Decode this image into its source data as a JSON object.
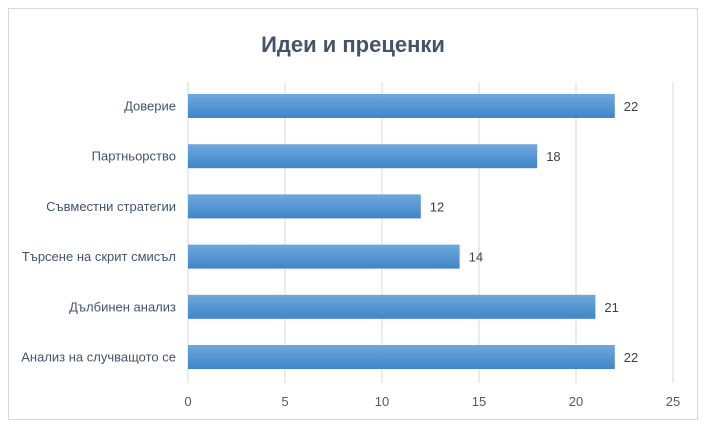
{
  "chart_data": {
    "type": "bar",
    "orientation": "horizontal",
    "title": "Идеи и преценки",
    "categories": [
      "Доверие",
      "Партньорство",
      "Съвместни стратегии",
      "Търсене на скрит смисъл",
      "Дълбинен анализ",
      "Анализ на случващото се"
    ],
    "values": [
      22,
      18,
      12,
      14,
      21,
      22
    ],
    "xlim": [
      0,
      25
    ],
    "xticks": [
      0,
      5,
      10,
      15,
      20,
      25
    ],
    "xlabel": "",
    "ylabel": "",
    "grid": true,
    "bar_color": "#5b9bd5",
    "bar_color_dark": "#3f85c9"
  }
}
